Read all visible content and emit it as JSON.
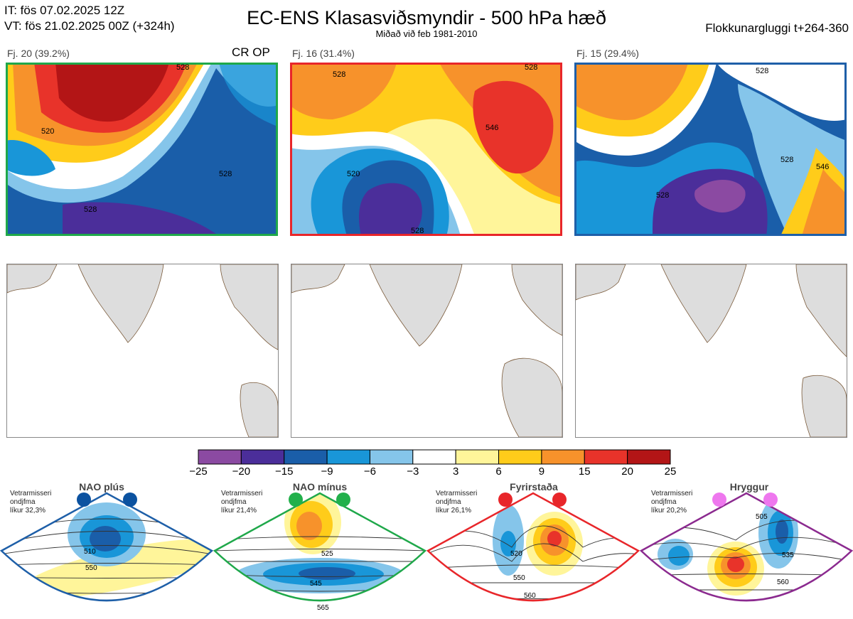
{
  "header": {
    "it_line": "IT: fös 07.02.2025 12Z",
    "vt_line": "VT: fös 21.02.2025 00Z  (+324h)",
    "title": "EC-ENS Klasasviðsmyndir - 500 hPa hæð",
    "subtitle": "Miðað við feb 1981-2010",
    "window": "Flokkunargluggi t+264-360"
  },
  "clusters": [
    {
      "label": "Fj. 20 (39.2%)",
      "extra": "CR OP",
      "border_color": "#1fa84a",
      "contours": [
        "520",
        "528",
        "528",
        "528"
      ]
    },
    {
      "label": "Fj. 16 (31.4%)",
      "extra": "",
      "border_color": "#e8262a",
      "contours": [
        "520",
        "528",
        "546",
        "528",
        "528"
      ]
    },
    {
      "label": "Fj. 15 (29.4%)",
      "extra": "",
      "border_color": "#1e5fa8",
      "contours": [
        "528",
        "528",
        "528",
        "546"
      ]
    }
  ],
  "chart_data": {
    "type": "heatmap",
    "title": "EC-ENS Klasasviðsmyndir - 500 hPa hæð",
    "colorbar": {
      "ticks": [
        "−25",
        "−20",
        "−15",
        "−9",
        "−6",
        "−3",
        "3",
        "6",
        "9",
        "15",
        "20",
        "25"
      ],
      "colors": [
        "#8b4aa2",
        "#4b2e9a",
        "#1a5ea9",
        "#1996d8",
        "#85c5ea",
        "#ffffff",
        "#fff59a",
        "#ffcc1a",
        "#f7922b",
        "#e8332a",
        "#b31516"
      ]
    },
    "series": [
      {
        "name": "Fj. 20",
        "percent": 39.2
      },
      {
        "name": "Fj. 16",
        "percent": 31.4
      },
      {
        "name": "Fj. 15",
        "percent": 29.4
      }
    ]
  },
  "regimes": [
    {
      "title": "NAO plús",
      "note": [
        "Vetrarmisseri",
        "ondjfma",
        "líkur 32,3%"
      ],
      "border_color": "#1e5fa8",
      "dot_color": "#0b52a0",
      "labels": [
        "510",
        "550"
      ]
    },
    {
      "title": "NAO mínus",
      "note": [
        "Vetrarmisseri",
        "ondjfma",
        "líkur 21,4%"
      ],
      "border_color": "#1fa84a",
      "dot_color": "#22b04b",
      "labels": [
        "525",
        "545",
        "565"
      ]
    },
    {
      "title": "Fyrirstaða",
      "note": [
        "Vetrarmisseri",
        "ondjfma",
        "líkur 26,1%"
      ],
      "border_color": "#e8262a",
      "dot_color": "#e8262a",
      "labels": [
        "520",
        "550",
        "560"
      ]
    },
    {
      "title": "Hryggur",
      "note": [
        "Vetrarmisseri",
        "ondjfma",
        "líkur 20,2%"
      ],
      "border_color": "#8b2a8f",
      "dot_color": "#ee77ee",
      "labels": [
        "505",
        "535",
        "560"
      ]
    }
  ]
}
